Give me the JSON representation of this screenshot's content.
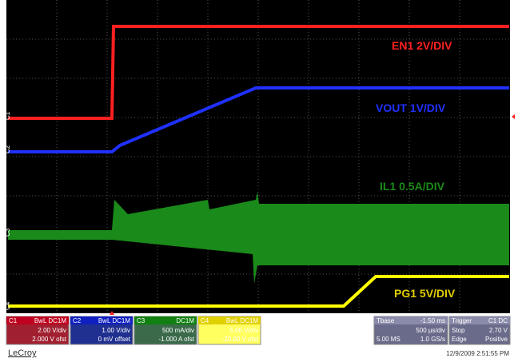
{
  "traces": [
    {
      "label": "EN1 2V/DIV",
      "marker": "C1"
    },
    {
      "label": "VOUT 1V/DIV",
      "marker": "C2"
    },
    {
      "label": "IL1 0.5A/DIV",
      "marker": "C3"
    },
    {
      "label": "PG1 5V/DIV",
      "marker": "C4"
    }
  ],
  "channels": [
    {
      "name": "C1",
      "flags": "BwL DC1M",
      "scale": "2.00 V/div",
      "offset": "2.000 V ofst"
    },
    {
      "name": "C2",
      "flags": "BwL DC1M",
      "scale": "1.00 V/div",
      "offset": "0 mV offset"
    },
    {
      "name": "C3",
      "flags": "DC1M",
      "scale": "500 mA/div",
      "offset": "-1.000 A ofst"
    },
    {
      "name": "C4",
      "flags": "BwL DC1M",
      "scale": "5.00 V/div",
      "offset": "-20.00 V ofst"
    }
  ],
  "timebase": {
    "title": "Tbase",
    "delay": "-1.50 ms",
    "div": "500 µs/div",
    "samples": "5.00 MS",
    "rate": "1.0 GS/s"
  },
  "trigger": {
    "title": "Trigger",
    "source": "C1 DC",
    "mode": "Stop",
    "level": "2.70 V",
    "type": "Edge",
    "slope": "Positive"
  },
  "brand": "LeCroy",
  "timestamp": "12/9/2009 2:51:55 PM"
}
